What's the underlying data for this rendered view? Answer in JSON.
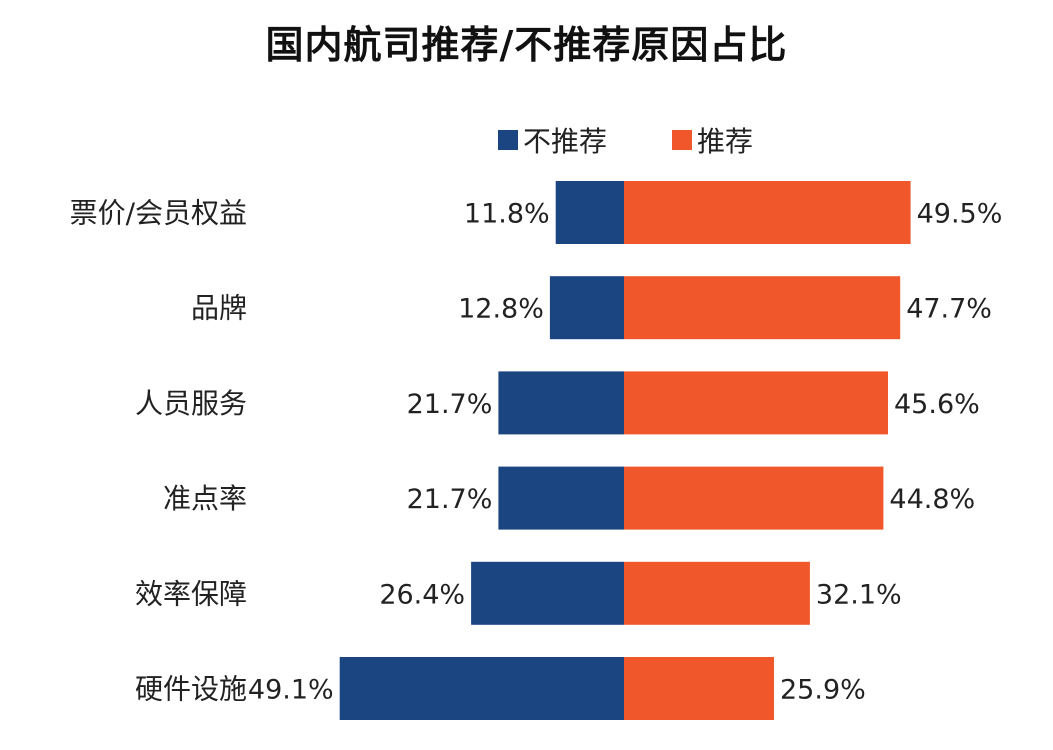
{
  "chart_data": {
    "type": "bar",
    "orientation": "horizontal",
    "stacking": "diverging",
    "title": "国内航司推荐/不推荐原因占比",
    "categories": [
      "票价/会员权益",
      "品牌",
      "人员服务",
      "准点率",
      "效率保障",
      "硬件设施"
    ],
    "series": [
      {
        "name": "不推荐",
        "color": "#1b4581",
        "values": [
          11.8,
          12.8,
          21.7,
          21.7,
          26.4,
          49.1
        ],
        "labels": [
          "11.8%",
          "12.8%",
          "21.7%",
          "21.7%",
          "26.4%",
          "49.1%"
        ]
      },
      {
        "name": "推荐",
        "color": "#f0582c",
        "values": [
          49.5,
          47.7,
          45.6,
          44.8,
          32.1,
          25.9
        ],
        "labels": [
          "49.5%",
          "47.7%",
          "45.6%",
          "44.8%",
          "32.1%",
          "25.9%"
        ]
      }
    ],
    "value_unit": "%",
    "legend_position": "top",
    "grid": false
  }
}
